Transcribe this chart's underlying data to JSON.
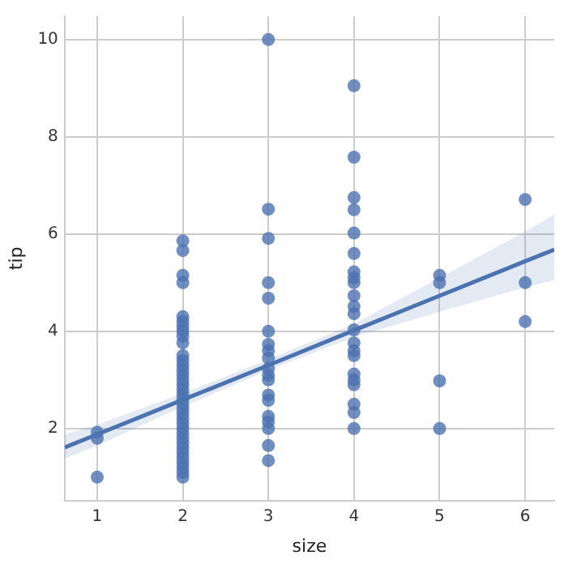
{
  "chart_data": {
    "type": "scatter",
    "xlabel": "size",
    "ylabel": "tip",
    "xlim": [
      0.62,
      6.34
    ],
    "xticks": [
      1,
      2,
      3,
      4,
      5,
      6
    ],
    "ylim": [
      0.52,
      10.48
    ],
    "yticks": [
      2,
      4,
      6,
      8,
      10
    ],
    "grid": true,
    "series": [
      {
        "marker": "circle",
        "color": "#4c72b0",
        "x": [
          1,
          1,
          1,
          2,
          2,
          2,
          2,
          2,
          2,
          2,
          2,
          2,
          2,
          2,
          2,
          2,
          2,
          2,
          2,
          2,
          2,
          2,
          2,
          2,
          2,
          2,
          2,
          2,
          2,
          2,
          2,
          2,
          2,
          2,
          2,
          2,
          2,
          2,
          2,
          3,
          3,
          3,
          3,
          3,
          3,
          3,
          3,
          3,
          3,
          3,
          3,
          3,
          3,
          3,
          3,
          3,
          3,
          3,
          4,
          4,
          4,
          4,
          4,
          4,
          4,
          4,
          4,
          4,
          4,
          4,
          4,
          4,
          4,
          4,
          4,
          4,
          4,
          4,
          4,
          4,
          5,
          5,
          5,
          5,
          6,
          6,
          6
        ],
        "values": [
          1.92,
          1.8,
          1.0,
          5.86,
          5.66,
          5.15,
          5.0,
          4.3,
          4.2,
          4.1,
          4.0,
          3.9,
          3.76,
          3.5,
          3.4,
          3.3,
          3.2,
          3.1,
          3.0,
          2.9,
          2.8,
          2.7,
          2.6,
          2.5,
          2.4,
          2.3,
          2.2,
          2.1,
          2.0,
          1.9,
          1.8,
          1.7,
          1.6,
          1.5,
          1.4,
          1.3,
          1.2,
          1.1,
          1.0,
          10.0,
          6.51,
          5.91,
          5.0,
          4.68,
          4.0,
          3.73,
          3.6,
          3.45,
          3.23,
          3.1,
          3.0,
          2.69,
          2.58,
          2.25,
          2.14,
          2.0,
          1.65,
          1.34,
          9.05,
          7.58,
          6.75,
          6.5,
          6.02,
          5.6,
          5.22,
          5.1,
          5.0,
          4.73,
          4.51,
          4.36,
          4.03,
          3.76,
          3.6,
          3.5,
          3.12,
          3.0,
          2.9,
          2.5,
          2.33,
          2.0,
          5.15,
          5.0,
          2.98,
          2.0,
          6.71,
          5.0,
          4.2
        ]
      },
      {
        "type": "line",
        "marker": "none",
        "color": "#4c72b0",
        "x": [
          0.62,
          1,
          2,
          3,
          4,
          5,
          6,
          6.34
        ],
        "values": [
          1.61,
          1.88,
          2.59,
          3.3,
          4.02,
          4.73,
          5.44,
          5.68
        ],
        "lower": [
          1.38,
          1.65,
          2.45,
          3.2,
          3.88,
          4.4,
          4.9,
          5.05
        ],
        "upper": [
          1.88,
          2.08,
          2.72,
          3.42,
          4.15,
          5.1,
          6.05,
          6.4
        ]
      }
    ]
  }
}
